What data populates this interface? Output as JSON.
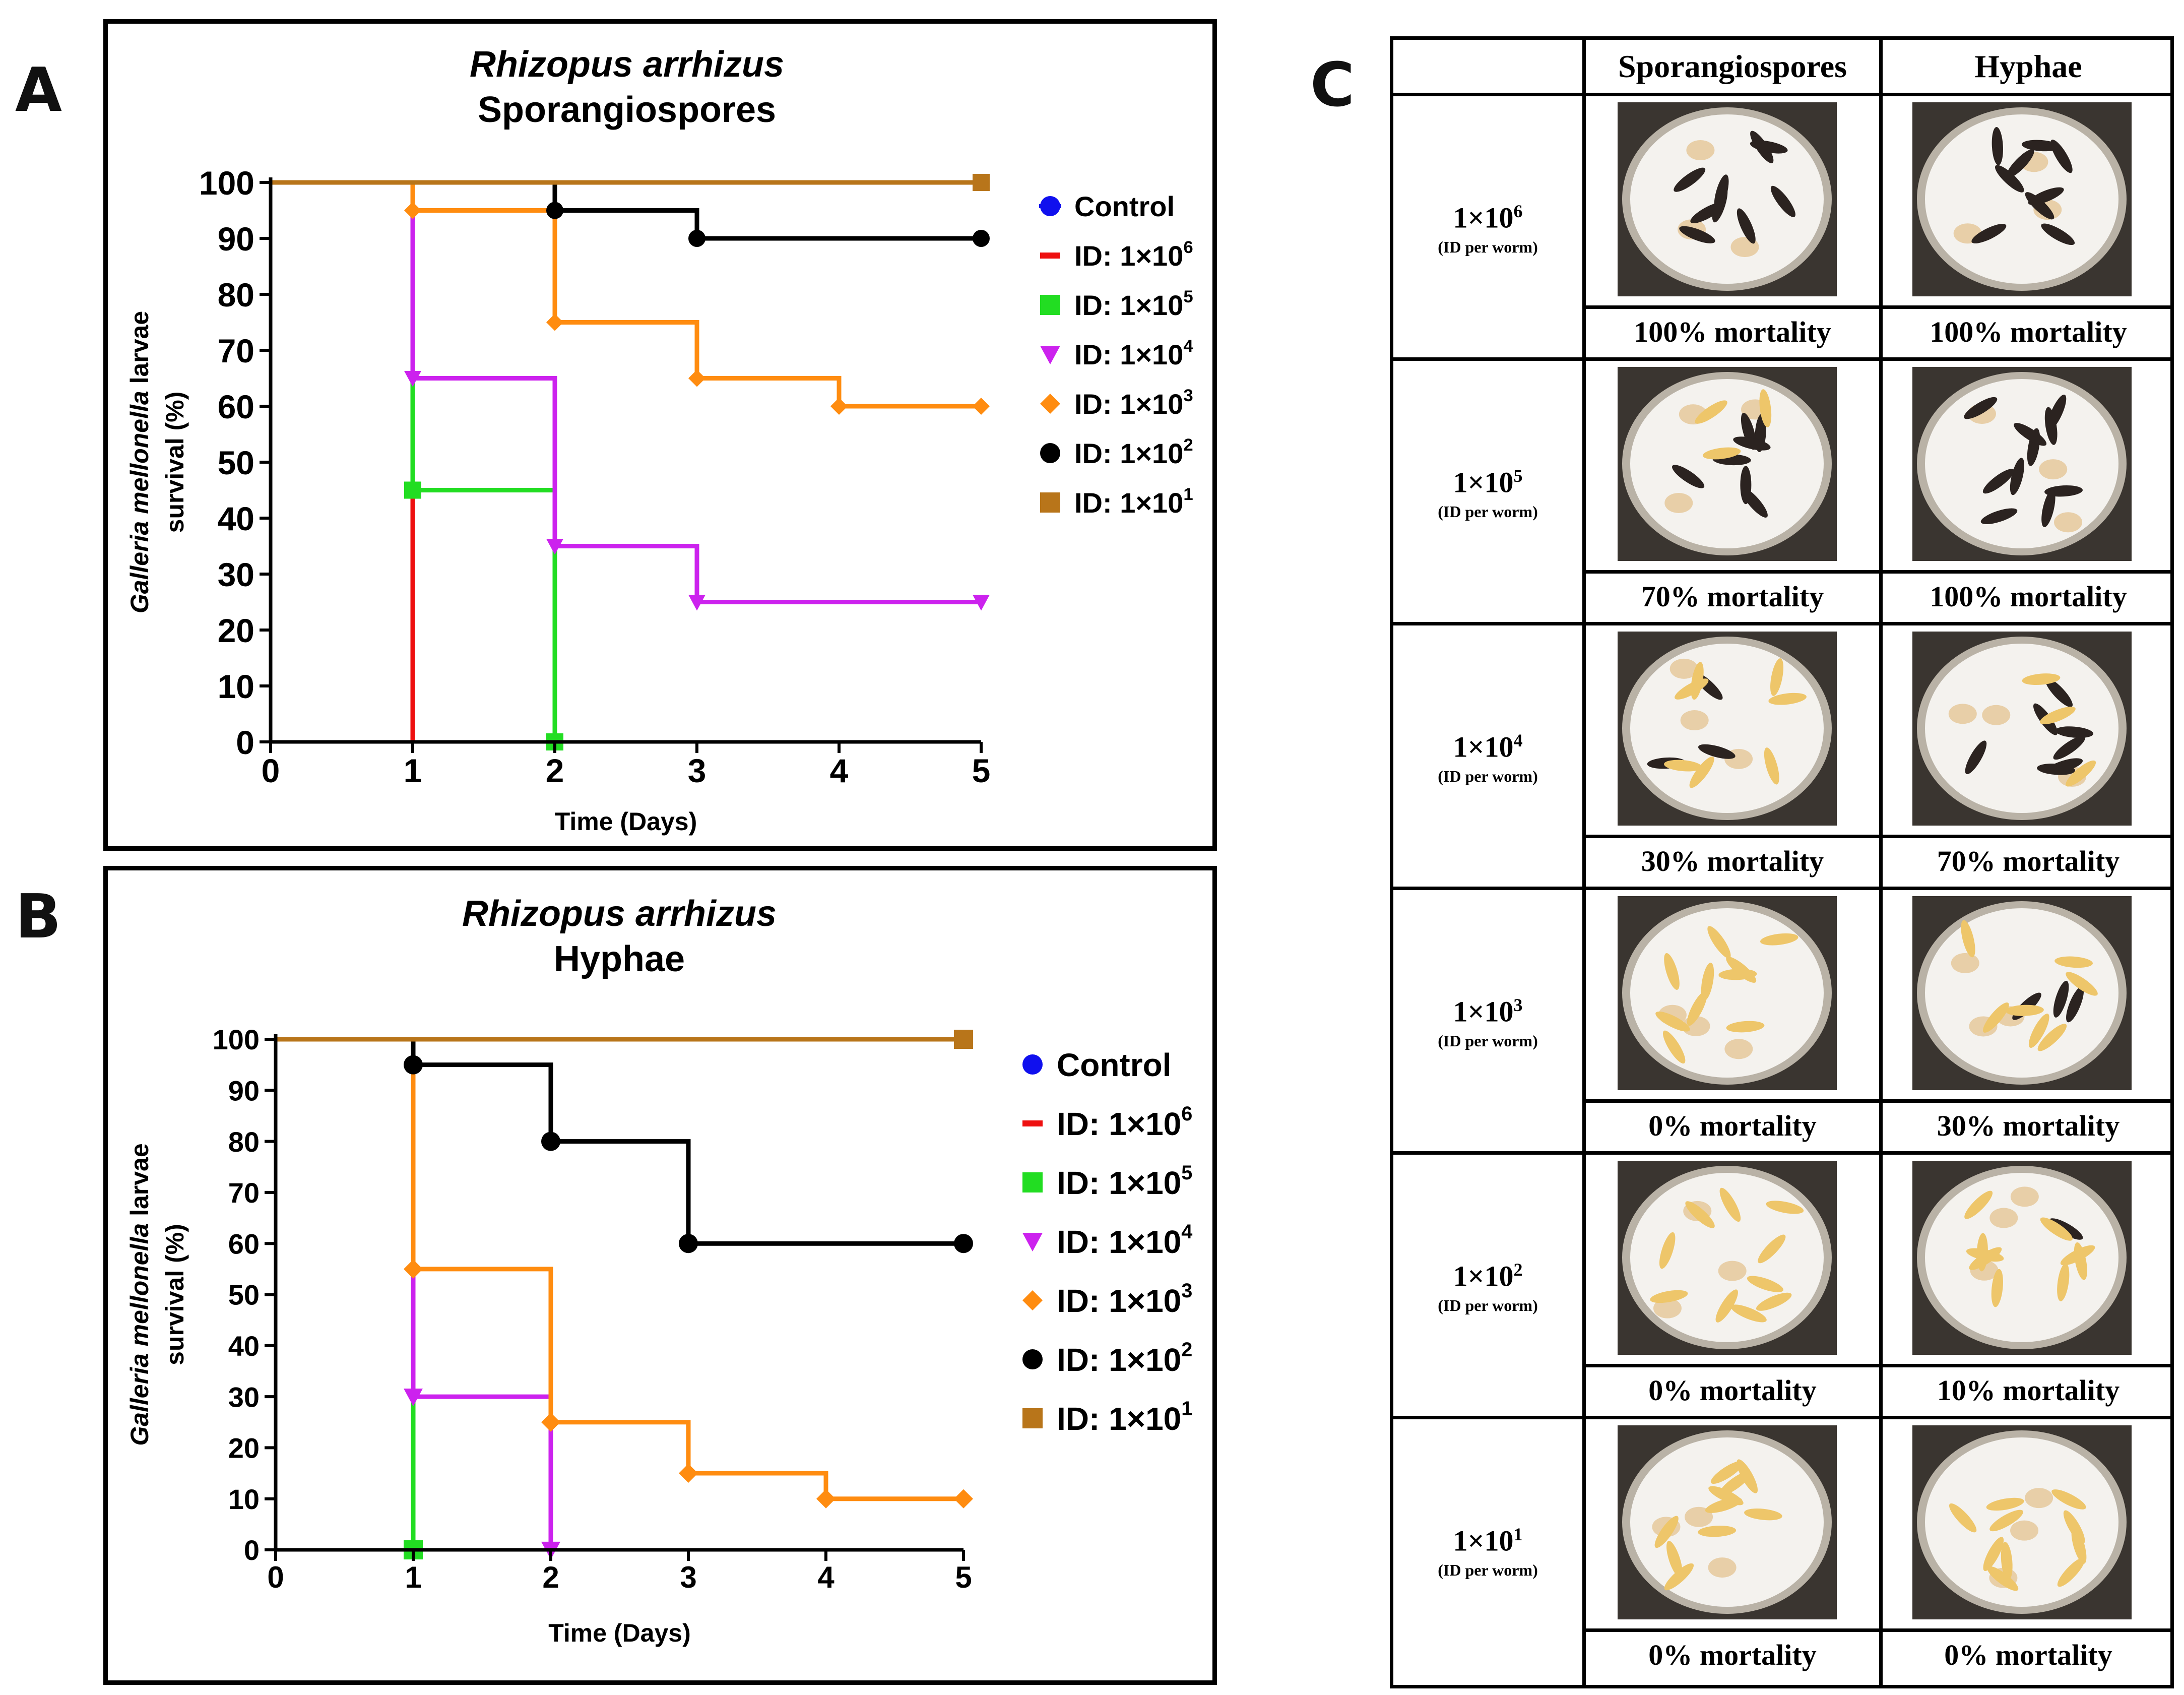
{
  "panels": {
    "a": "A",
    "b": "B",
    "c": "C"
  },
  "colors": {
    "control": "#1010ee",
    "id_1e6": "#ee1010",
    "id_1e5": "#22dd22",
    "id_1e4": "#cc22ee",
    "id_1e3": "#ff8c10",
    "id_1e2": "#000000",
    "id_1e1": "#b8751a"
  },
  "chart_data": [
    {
      "panel": "A",
      "type": "line",
      "title_italic": "Rhizopus arrhizus",
      "title": "Sporangiospores",
      "xlabel": "Time (Days)",
      "ylabel_italic": "Galleria mellonella",
      "ylabel_rest": " larvae",
      "ylabel_line2": "survival (%)",
      "xlim": [
        0,
        5
      ],
      "ylim": [
        0,
        100
      ],
      "xticks": [
        0,
        1,
        2,
        3,
        4,
        5
      ],
      "yticks": [
        0,
        10,
        20,
        30,
        40,
        50,
        60,
        70,
        80,
        90,
        100
      ],
      "legend_position": "right",
      "series": [
        {
          "name": "Control",
          "key": "control",
          "marker": "circle",
          "x": [
            0,
            5
          ],
          "y": [
            100,
            100
          ],
          "markers_at": [
            5
          ]
        },
        {
          "name": "ID: 1×10",
          "sup": "6",
          "key": "id_1e6",
          "marker": "dash",
          "x": [
            0,
            1,
            1
          ],
          "y": [
            100,
            100,
            0
          ],
          "markers_at": []
        },
        {
          "name": "ID: 1×10",
          "sup": "5",
          "key": "id_1e5",
          "marker": "square",
          "x": [
            0,
            1,
            1,
            2,
            2
          ],
          "y": [
            100,
            100,
            45,
            45,
            0
          ],
          "markers_at": [
            1,
            2
          ]
        },
        {
          "name": "ID: 1×10",
          "sup": "4",
          "key": "id_1e4",
          "marker": "triangle-down",
          "x": [
            0,
            1,
            1,
            2,
            2,
            3,
            3,
            5
          ],
          "y": [
            100,
            100,
            65,
            65,
            35,
            35,
            25,
            25
          ],
          "markers_at": [
            1,
            2,
            3,
            5
          ]
        },
        {
          "name": "ID: 1×10",
          "sup": "3",
          "key": "id_1e3",
          "marker": "diamond",
          "x": [
            0,
            1,
            1,
            2,
            2,
            3,
            3,
            4,
            4,
            5
          ],
          "y": [
            100,
            100,
            95,
            95,
            75,
            75,
            65,
            65,
            60,
            60
          ],
          "markers_at": [
            1,
            2,
            3,
            4,
            5
          ]
        },
        {
          "name": "ID: 1×10",
          "sup": "2",
          "key": "id_1e2",
          "marker": "circle",
          "x": [
            0,
            2,
            2,
            3,
            3,
            5
          ],
          "y": [
            100,
            100,
            95,
            95,
            90,
            90
          ],
          "markers_at": [
            2,
            3,
            5
          ]
        },
        {
          "name": "ID: 1×10",
          "sup": "1",
          "key": "id_1e1",
          "marker": "square",
          "x": [
            0,
            5
          ],
          "y": [
            100,
            100
          ],
          "markers_at": [
            5
          ]
        }
      ]
    },
    {
      "panel": "B",
      "type": "line",
      "title_italic": "Rhizopus arrhizus",
      "title": "Hyphae",
      "xlabel": "Time (Days)",
      "ylabel_italic": "Galleria mellonella",
      "ylabel_rest": " larvae",
      "ylabel_line2": "survival (%)",
      "xlim": [
        0,
        5
      ],
      "ylim": [
        0,
        100
      ],
      "xticks": [
        0,
        1,
        2,
        3,
        4,
        5
      ],
      "yticks": [
        0,
        10,
        20,
        30,
        40,
        50,
        60,
        70,
        80,
        90,
        100
      ],
      "legend_position": "right",
      "series": [
        {
          "name": "Control",
          "key": "control",
          "marker": "circle",
          "x": [
            0,
            5
          ],
          "y": [
            100,
            100
          ],
          "markers_at": [
            5
          ]
        },
        {
          "name": "ID: 1×10",
          "sup": "6",
          "key": "id_1e6",
          "marker": "dash",
          "x": [
            0,
            1,
            1
          ],
          "y": [
            100,
            100,
            0
          ],
          "markers_at": []
        },
        {
          "name": "ID: 1×10",
          "sup": "5",
          "key": "id_1e5",
          "marker": "square",
          "x": [
            0,
            1,
            1
          ],
          "y": [
            100,
            100,
            0
          ],
          "markers_at": [
            1
          ]
        },
        {
          "name": "ID: 1×10",
          "sup": "4",
          "key": "id_1e4",
          "marker": "triangle-down",
          "x": [
            0,
            1,
            1,
            2,
            2
          ],
          "y": [
            100,
            100,
            30,
            30,
            0
          ],
          "markers_at": [
            1,
            2
          ]
        },
        {
          "name": "ID: 1×10",
          "sup": "3",
          "key": "id_1e3",
          "marker": "diamond",
          "x": [
            0,
            1,
            1,
            2,
            2,
            3,
            3,
            4,
            4,
            5
          ],
          "y": [
            100,
            100,
            55,
            55,
            25,
            25,
            15,
            15,
            10,
            10
          ],
          "markers_at": [
            1,
            2,
            3,
            4,
            5
          ]
        },
        {
          "name": "ID: 1×10",
          "sup": "2",
          "key": "id_1e2",
          "marker": "circle",
          "x": [
            0,
            1,
            1,
            2,
            2,
            3,
            3,
            5
          ],
          "y": [
            100,
            100,
            95,
            95,
            80,
            80,
            60,
            60
          ],
          "markers_at": [
            1,
            2,
            3,
            5
          ]
        },
        {
          "name": "ID: 1×10",
          "sup": "1",
          "key": "id_1e1",
          "marker": "square",
          "x": [
            0,
            5
          ],
          "y": [
            100,
            100
          ],
          "markers_at": [
            5
          ]
        }
      ]
    }
  ],
  "table": {
    "headers": [
      "Sporangiospores",
      "Hyphae"
    ],
    "rows": [
      {
        "dose": "1×10",
        "sup": "6",
        "sub": "(ID per worm)",
        "sporangiospores": "100% mortality",
        "hyphae": "100% mortality",
        "dark_spores": 9,
        "pale_spores": 0,
        "dark_hyphae": 9,
        "pale_hyphae": 0
      },
      {
        "dose": "1×10",
        "sup": "5",
        "sub": "(ID per worm)",
        "sporangiospores": "70% mortality",
        "hyphae": "100% mortality",
        "dark_spores": 7,
        "pale_spores": 3,
        "dark_hyphae": 10,
        "pale_hyphae": 0
      },
      {
        "dose": "1×10",
        "sup": "4",
        "sub": "(ID per worm)",
        "sporangiospores": "30% mortality",
        "hyphae": "70% mortality",
        "dark_spores": 3,
        "pale_spores": 7,
        "dark_hyphae": 7,
        "pale_hyphae": 3
      },
      {
        "dose": "1×10",
        "sup": "3",
        "sub": "(ID per worm)",
        "sporangiospores": "0% mortality",
        "hyphae": "30% mortality",
        "dark_spores": 0,
        "pale_spores": 10,
        "dark_hyphae": 3,
        "pale_hyphae": 7
      },
      {
        "dose": "1×10",
        "sup": "2",
        "sub": "(ID per worm)",
        "sporangiospores": "0% mortality",
        "hyphae": "10% mortality",
        "dark_spores": 0,
        "pale_spores": 10,
        "dark_hyphae": 1,
        "pale_hyphae": 9
      },
      {
        "dose": "1×10",
        "sup": "1",
        "sub": "(ID per worm)",
        "sporangiospores": "0% mortality",
        "hyphae": "0% mortality",
        "dark_spores": 0,
        "pale_spores": 10,
        "dark_hyphae": 0,
        "pale_hyphae": 10
      }
    ]
  }
}
